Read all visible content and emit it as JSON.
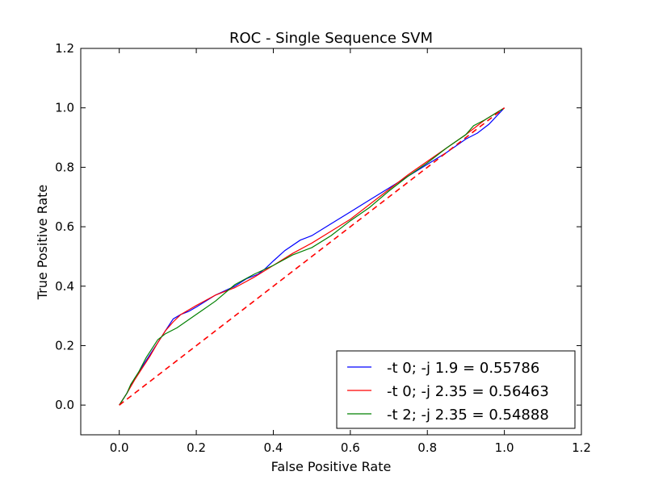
{
  "chart_data": {
    "type": "line",
    "title": "ROC - Single Sequence SVM",
    "xlabel": "False Positive Rate",
    "ylabel": "True Positive Rate",
    "xlim": [
      -0.1,
      1.2
    ],
    "ylim": [
      -0.1,
      1.2
    ],
    "xticks": [
      "0.0",
      "0.2",
      "0.4",
      "0.6",
      "0.8",
      "1.0",
      "1.2"
    ],
    "yticks": [
      "0.0",
      "0.2",
      "0.4",
      "0.6",
      "0.8",
      "1.0",
      "1.2"
    ],
    "xtick_values": [
      0.0,
      0.2,
      0.4,
      0.6,
      0.8,
      1.0,
      1.2
    ],
    "ytick_values": [
      0.0,
      0.2,
      0.4,
      0.6,
      0.8,
      1.0,
      1.2
    ],
    "grid": false,
    "legend_position": "lower-right",
    "series": [
      {
        "name": "-t 0; -j 1.9 = 0.55786",
        "color": "#0000ff",
        "x": [
          0.0,
          0.02,
          0.04,
          0.06,
          0.08,
          0.1,
          0.12,
          0.14,
          0.16,
          0.18,
          0.2,
          0.25,
          0.3,
          0.33,
          0.36,
          0.38,
          0.4,
          0.43,
          0.47,
          0.5,
          0.55,
          0.6,
          0.65,
          0.7,
          0.75,
          0.8,
          0.85,
          0.9,
          0.93,
          0.96,
          1.0
        ],
        "y": [
          0.0,
          0.04,
          0.09,
          0.13,
          0.17,
          0.21,
          0.25,
          0.29,
          0.305,
          0.315,
          0.33,
          0.37,
          0.4,
          0.425,
          0.44,
          0.46,
          0.485,
          0.52,
          0.555,
          0.57,
          0.61,
          0.65,
          0.69,
          0.73,
          0.77,
          0.81,
          0.85,
          0.895,
          0.915,
          0.945,
          1.0
        ]
      },
      {
        "name": "-t 0; -j 2.35 = 0.56463",
        "color": "#ff0000",
        "x": [
          0.0,
          0.02,
          0.04,
          0.06,
          0.08,
          0.1,
          0.12,
          0.14,
          0.16,
          0.2,
          0.25,
          0.3,
          0.35,
          0.4,
          0.45,
          0.5,
          0.55,
          0.6,
          0.65,
          0.7,
          0.75,
          0.8,
          0.85,
          0.9,
          0.95,
          1.0
        ],
        "y": [
          0.0,
          0.04,
          0.085,
          0.125,
          0.165,
          0.21,
          0.25,
          0.28,
          0.305,
          0.335,
          0.37,
          0.395,
          0.43,
          0.47,
          0.51,
          0.545,
          0.585,
          0.625,
          0.675,
          0.725,
          0.775,
          0.82,
          0.865,
          0.91,
          0.96,
          1.0
        ]
      },
      {
        "name": "-t 2; -j 2.35 = 0.54888",
        "color": "#008000",
        "x": [
          0.0,
          0.01,
          0.02,
          0.03,
          0.05,
          0.07,
          0.1,
          0.12,
          0.15,
          0.2,
          0.25,
          0.3,
          0.35,
          0.4,
          0.45,
          0.5,
          0.55,
          0.6,
          0.65,
          0.7,
          0.75,
          0.8,
          0.85,
          0.9,
          0.92,
          0.95,
          1.0
        ],
        "y": [
          0.0,
          0.02,
          0.04,
          0.07,
          0.11,
          0.16,
          0.22,
          0.24,
          0.26,
          0.305,
          0.35,
          0.405,
          0.44,
          0.47,
          0.505,
          0.53,
          0.57,
          0.62,
          0.665,
          0.72,
          0.77,
          0.815,
          0.865,
          0.91,
          0.94,
          0.96,
          1.0
        ]
      },
      {
        "name": "",
        "color": "#ff0000",
        "dashed": true,
        "x": [
          0.0,
          1.0
        ],
        "y": [
          0.0,
          1.0
        ]
      }
    ]
  }
}
